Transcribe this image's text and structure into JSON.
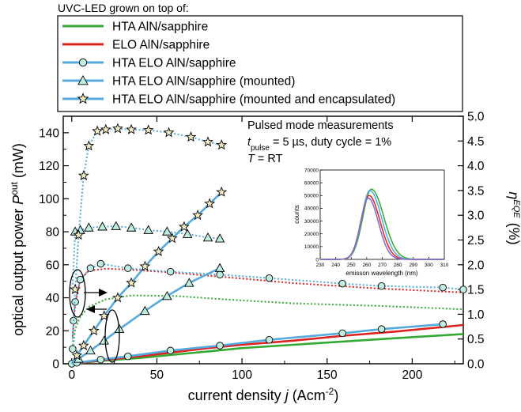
{
  "chart_data": {
    "type": "line",
    "legend": {
      "title": "UVC-LED grown on top of:",
      "placement": "top",
      "entries": [
        {
          "label": "HTA AlN/sapphire",
          "color": "#33aa33",
          "marker": "none"
        },
        {
          "label": "ELO AlN/sapphire",
          "color": "#dd2222",
          "marker": "none"
        },
        {
          "label": "HTA ELO AlN/sapphire",
          "color": "#55aadd",
          "marker": "circle"
        },
        {
          "label": "HTA ELO AlN/sapphire (mounted)",
          "color": "#55aadd",
          "marker": "triangle"
        },
        {
          "label": "HTA ELO AlN/sapphire (mounted and encapsulated)",
          "color": "#55aadd",
          "marker": "star"
        }
      ]
    },
    "annotation": {
      "line1": "Pulsed mode measurements",
      "t_symbol": "t",
      "t_sub": "pulse",
      "t_rest": " = 5 µs, duty cycle = 1%",
      "T_symbol": "T",
      "T_rest": " = RT"
    },
    "xaxis": {
      "label_main": "current density ",
      "label_sym": "j",
      "label_unit": " (Acm",
      "label_exp": "-2",
      "label_close": ")",
      "range": [
        -5,
        230
      ],
      "ticks": [
        0,
        50,
        100,
        150,
        200
      ]
    },
    "yaxis_left": {
      "label_main": "optical output power ",
      "label_sym": "P",
      "label_sup": "out",
      "label_unit": " (mW)",
      "range": [
        0,
        150
      ],
      "ticks": [
        0,
        20,
        40,
        60,
        80,
        100,
        120,
        140
      ]
    },
    "yaxis_right": {
      "label_sym": "η",
      "label_sub": "EQE",
      "label_unit": "(%)",
      "range": [
        0,
        5
      ],
      "ticks": [
        "0.0",
        "0.5",
        "1.0",
        "1.5",
        "2.0",
        "2.5",
        "3.0",
        "3.5",
        "4.0",
        "4.5",
        "5.0"
      ]
    },
    "power_series": [
      {
        "name": "HTA AlN/sapphire",
        "color": "#33aa33",
        "marker": "none",
        "x": [
          0,
          10,
          20,
          40,
          60,
          80,
          100,
          130,
          160,
          190,
          230
        ],
        "y": [
          0,
          1,
          2,
          3.5,
          5.5,
          7.5,
          9.5,
          11.5,
          13.5,
          15.5,
          18
        ]
      },
      {
        "name": "ELO AlN/sapphire",
        "color": "#dd2222",
        "marker": "none",
        "x": [
          0,
          10,
          20,
          40,
          60,
          80,
          100,
          130,
          160,
          190,
          230
        ],
        "y": [
          0,
          1.2,
          2.5,
          4.5,
          7,
          9.5,
          11.5,
          14,
          17,
          19.5,
          23.5
        ]
      },
      {
        "name": "HTA ELO AlN/sapphire",
        "color": "#55aadd",
        "marker": "circle",
        "x": [
          0,
          3,
          17,
          33,
          58,
          87,
          116,
          159,
          182,
          218
        ],
        "y": [
          0,
          0.6,
          2.5,
          4.5,
          8,
          11,
          14.5,
          18.5,
          21,
          24
        ]
      },
      {
        "name": "HTA ELO AlN/sapphire (mounted)",
        "color": "#55aadd",
        "marker": "triangle",
        "x": [
          0,
          4,
          11,
          19,
          28,
          43,
          56,
          69,
          87
        ],
        "y": [
          0,
          3,
          8,
          14,
          21,
          32,
          41,
          49,
          58
        ]
      },
      {
        "name": "HTA ELO AlN/sapphire (mounted and encapsulated)",
        "color": "#55aadd",
        "marker": "star",
        "x": [
          0,
          3,
          7,
          13,
          19,
          27,
          35,
          43,
          51,
          59,
          66,
          74,
          81,
          88
        ],
        "y": [
          0,
          5,
          11,
          20,
          29,
          40,
          49,
          59,
          68,
          76,
          83,
          90,
          97,
          104
        ]
      }
    ],
    "eqe_series": [
      {
        "name": "HTA AlN/sapphire",
        "color": "#33aa33",
        "marker": "none",
        "x": [
          0.5,
          2,
          5,
          10,
          20,
          35,
          60,
          90,
          130,
          180,
          230
        ],
        "y": [
          0.3,
          0.7,
          0.95,
          1.15,
          1.3,
          1.38,
          1.37,
          1.3,
          1.22,
          1.17,
          1.1
        ]
      },
      {
        "name": "ELO AlN/sapphire",
        "color": "#dd2222",
        "marker": "none",
        "x": [
          0.5,
          2,
          5,
          10,
          20,
          35,
          60,
          90,
          130,
          180,
          230
        ],
        "y": [
          0.55,
          1.2,
          1.7,
          1.88,
          1.92,
          1.9,
          1.84,
          1.75,
          1.63,
          1.52,
          1.44
        ]
      },
      {
        "name": "HTA ELO AlN/sapphire",
        "color": "#55aadd",
        "marker": "circle",
        "x": [
          0.5,
          1,
          2,
          5,
          11,
          17,
          33,
          58,
          87,
          116,
          159,
          182,
          218,
          230
        ],
        "y": [
          0.3,
          0.87,
          1.25,
          1.7,
          1.93,
          2.02,
          1.93,
          1.86,
          1.8,
          1.73,
          1.62,
          1.57,
          1.54,
          1.5
        ]
      },
      {
        "name": "HTA ELO AlN/sapphire (mounted)",
        "color": "#55aadd",
        "marker": "triangle",
        "x": [
          0.5,
          2,
          5,
          10,
          18,
          26,
          35,
          45,
          56,
          68,
          80,
          87
        ],
        "y": [
          1.6,
          2.67,
          2.7,
          2.75,
          2.77,
          2.78,
          2.75,
          2.7,
          2.67,
          2.62,
          2.55,
          2.53
        ]
      },
      {
        "name": "HTA ELO AlN/sapphire (mounted and encapsulated)",
        "color": "#55aadd",
        "marker": "star",
        "x": [
          0.5,
          2,
          4,
          7,
          10,
          15,
          20,
          27,
          35,
          45,
          57,
          70,
          80,
          88
        ],
        "y": [
          0.5,
          1.5,
          2.6,
          3.8,
          4.4,
          4.7,
          4.73,
          4.75,
          4.73,
          4.72,
          4.67,
          4.58,
          4.48,
          4.42
        ]
      }
    ],
    "inset": {
      "type": "line",
      "xlabel": "emisson wavelength (nm)",
      "ylabel": "counts",
      "xrange": [
        230,
        310
      ],
      "yrange": [
        0,
        70000
      ],
      "xticks": [
        230,
        240,
        250,
        260,
        270,
        280,
        290,
        300,
        310
      ],
      "yticks": [
        0,
        10000,
        20000,
        30000,
        40000,
        50000,
        60000,
        70000
      ],
      "series": [
        {
          "color": "#33aa33",
          "peak_wl": 263,
          "amplitude": 55000,
          "sigma_left": 5.5,
          "sigma_right": 8.0
        },
        {
          "color": "#dd2222",
          "peak_wl": 261.5,
          "amplitude": 50000,
          "sigma_left": 5.0,
          "sigma_right": 7.0
        },
        {
          "color": "#55aadd",
          "peak_wl": 262,
          "amplitude": 54000,
          "sigma_left": 5.2,
          "sigma_right": 7.5
        },
        {
          "color": "#8866cc",
          "peak_wl": 261,
          "amplitude": 48000,
          "sigma_left": 5.0,
          "sigma_right": 6.5
        }
      ]
    }
  }
}
